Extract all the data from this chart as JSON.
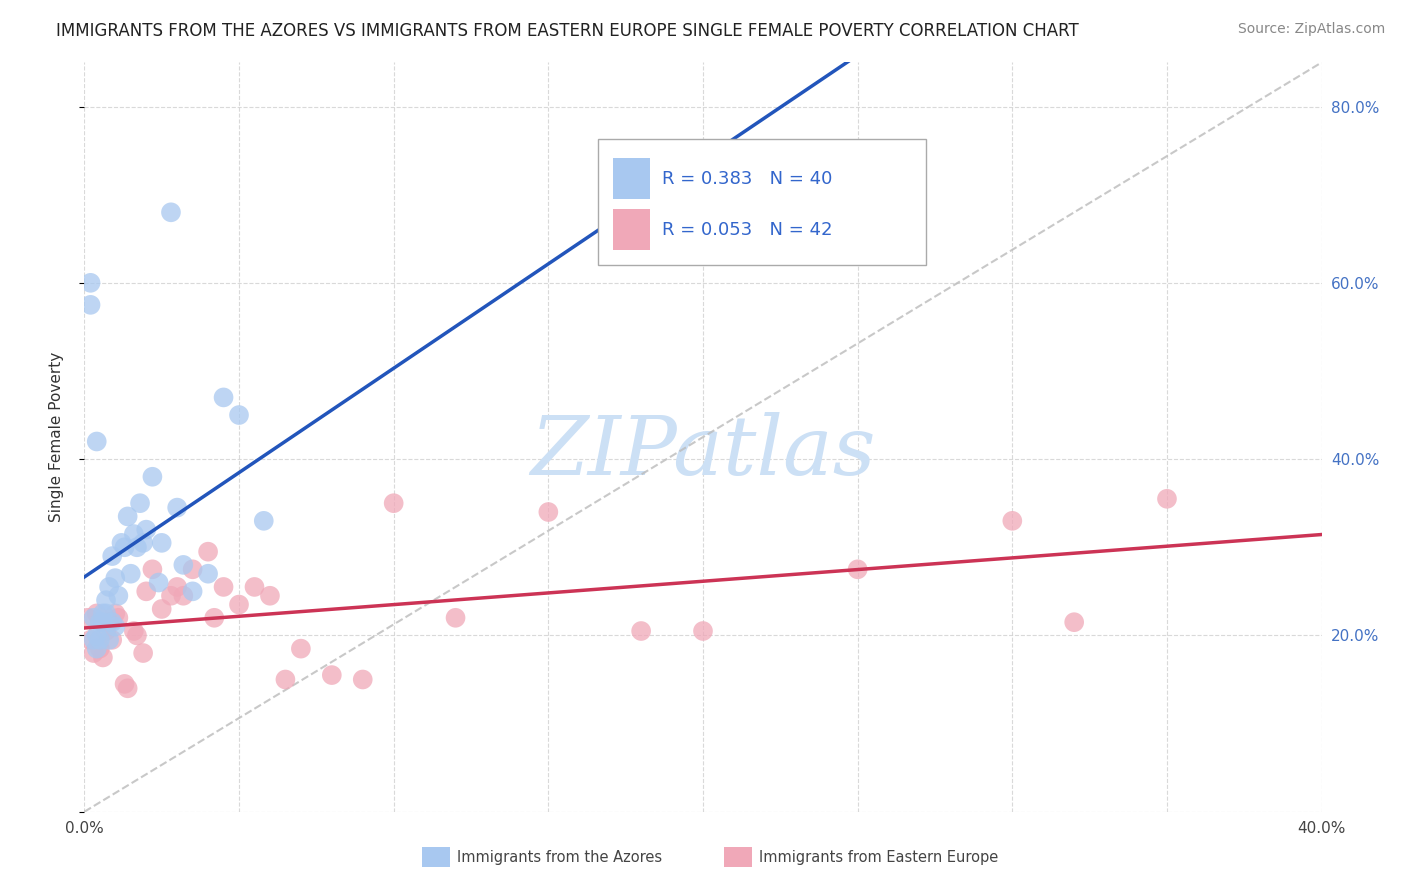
{
  "title": "IMMIGRANTS FROM THE AZORES VS IMMIGRANTS FROM EASTERN EUROPE SINGLE FEMALE POVERTY CORRELATION CHART",
  "source": "Source: ZipAtlas.com",
  "ylabel": "Single Female Poverty",
  "legend_label1": "Immigrants from the Azores",
  "legend_label2": "Immigrants from Eastern Europe",
  "R1": "0.383",
  "N1": "40",
  "R2": "0.053",
  "N2": "42",
  "xlim": [
    0.0,
    0.4
  ],
  "ylim": [
    0.0,
    0.85
  ],
  "xticks": [
    0.0,
    0.05,
    0.1,
    0.15,
    0.2,
    0.25,
    0.3,
    0.35,
    0.4
  ],
  "yticks": [
    0.0,
    0.2,
    0.4,
    0.6,
    0.8
  ],
  "background": "#ffffff",
  "grid_color": "#d0d0d0",
  "color_azores": "#a8c8f0",
  "color_eastern": "#f0a8b8",
  "line_color_azores": "#2255bb",
  "line_color_eastern": "#cc3355",
  "diag_color": "#bbbbbb",
  "watermark_color": "#cce0f5",
  "scatter_azores_x": [
    0.002,
    0.003,
    0.003,
    0.004,
    0.004,
    0.005,
    0.005,
    0.006,
    0.006,
    0.007,
    0.007,
    0.008,
    0.008,
    0.009,
    0.009,
    0.01,
    0.01,
    0.011,
    0.012,
    0.013,
    0.014,
    0.015,
    0.016,
    0.017,
    0.018,
    0.019,
    0.02,
    0.022,
    0.024,
    0.025,
    0.028,
    0.03,
    0.032,
    0.035,
    0.04,
    0.045,
    0.05,
    0.058,
    0.002,
    0.004
  ],
  "scatter_azores_y": [
    0.575,
    0.195,
    0.22,
    0.185,
    0.2,
    0.195,
    0.215,
    0.215,
    0.225,
    0.225,
    0.24,
    0.195,
    0.255,
    0.215,
    0.29,
    0.21,
    0.265,
    0.245,
    0.305,
    0.3,
    0.335,
    0.27,
    0.315,
    0.3,
    0.35,
    0.305,
    0.32,
    0.38,
    0.26,
    0.305,
    0.68,
    0.345,
    0.28,
    0.25,
    0.27,
    0.47,
    0.45,
    0.33,
    0.6,
    0.42
  ],
  "scatter_eastern_x": [
    0.001,
    0.002,
    0.003,
    0.004,
    0.005,
    0.006,
    0.007,
    0.008,
    0.009,
    0.01,
    0.011,
    0.013,
    0.014,
    0.016,
    0.017,
    0.019,
    0.02,
    0.022,
    0.025,
    0.028,
    0.03,
    0.032,
    0.035,
    0.04,
    0.042,
    0.045,
    0.05,
    0.055,
    0.06,
    0.065,
    0.07,
    0.08,
    0.09,
    0.1,
    0.12,
    0.15,
    0.18,
    0.2,
    0.25,
    0.3,
    0.32,
    0.35
  ],
  "scatter_eastern_y": [
    0.22,
    0.195,
    0.18,
    0.225,
    0.185,
    0.175,
    0.205,
    0.215,
    0.195,
    0.225,
    0.22,
    0.145,
    0.14,
    0.205,
    0.2,
    0.18,
    0.25,
    0.275,
    0.23,
    0.245,
    0.255,
    0.245,
    0.275,
    0.295,
    0.22,
    0.255,
    0.235,
    0.255,
    0.245,
    0.15,
    0.185,
    0.155,
    0.15,
    0.35,
    0.22,
    0.34,
    0.205,
    0.205,
    0.275,
    0.33,
    0.215,
    0.355
  ],
  "title_fontsize": 12,
  "source_fontsize": 10,
  "tick_fontsize": 11,
  "ylabel_fontsize": 11,
  "legend_fontsize": 13,
  "watermark_text": "ZIPatlas",
  "watermark_fontsize": 60
}
